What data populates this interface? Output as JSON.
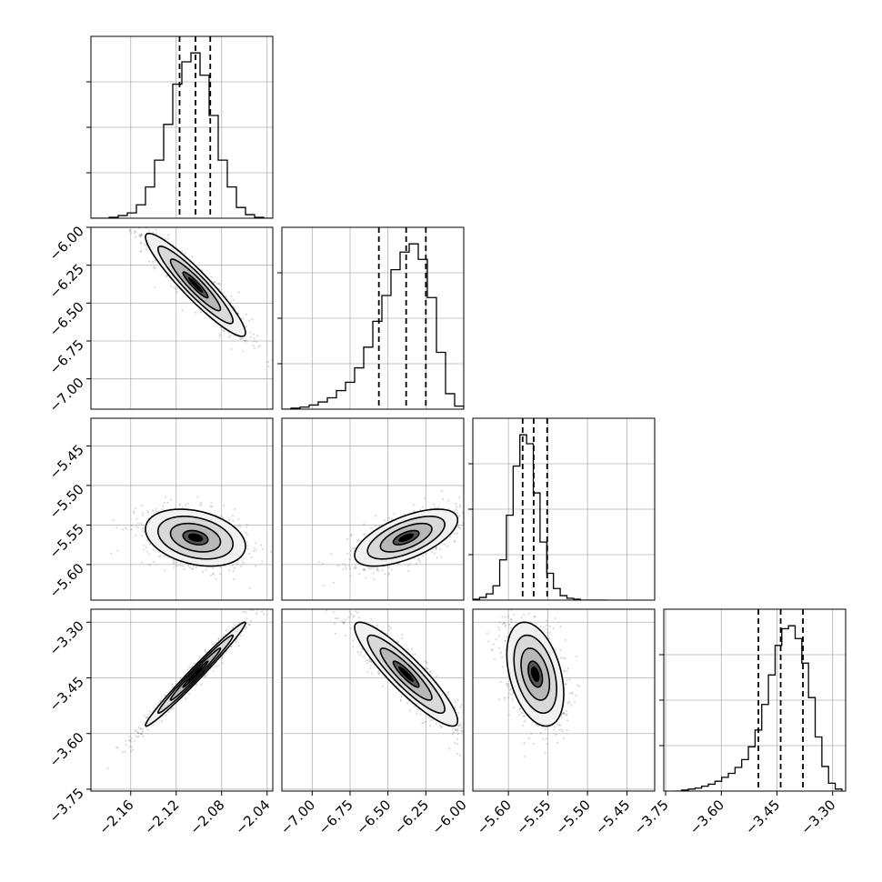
{
  "chart_data": {
    "type": "corner",
    "title": "",
    "grid": true,
    "parameters": [
      {
        "range": [
          -2.195,
          -2.035
        ],
        "ticks": [
          -2.16,
          -2.12,
          -2.08,
          -2.04
        ],
        "tick_labels": [
          "−2.16",
          "−2.12",
          "−2.08",
          "−2.04"
        ],
        "quantiles": [
          -2.117,
          -2.103,
          -2.09
        ],
        "histogram": {
          "bin_edges": [
            -2.195,
            -2.187,
            -2.179,
            -2.171,
            -2.163,
            -2.155,
            -2.147,
            -2.139,
            -2.131,
            -2.123,
            -2.115,
            -2.107,
            -2.099,
            -2.091,
            -2.083,
            -2.075,
            -2.067,
            -2.059,
            -2.051,
            -2.043,
            -2.035
          ],
          "counts": [
            0,
            0,
            1,
            3,
            6,
            15,
            35,
            65,
            105,
            150,
            175,
            185,
            160,
            115,
            65,
            35,
            12,
            4,
            1,
            0
          ]
        }
      },
      {
        "range": [
          -7.2,
          -6.0
        ],
        "ticks": [
          -7.0,
          -6.75,
          -6.5,
          -6.25,
          -6.0
        ],
        "tick_labels": [
          "−7.00",
          "−6.75",
          "−6.50",
          "−6.25",
          "−6.00"
        ],
        "quantiles": [
          -6.56,
          -6.38,
          -6.25
        ],
        "histogram": {
          "bin_edges": [
            -7.2,
            -7.14,
            -7.08,
            -7.02,
            -6.96,
            -6.9,
            -6.84,
            -6.78,
            -6.72,
            -6.66,
            -6.6,
            -6.54,
            -6.48,
            -6.42,
            -6.36,
            -6.3,
            -6.24,
            -6.18,
            -6.12,
            -6.06,
            -6.0
          ],
          "counts": [
            0,
            1,
            2,
            4,
            7,
            11,
            18,
            26,
            40,
            60,
            85,
            110,
            135,
            152,
            160,
            145,
            108,
            55,
            15,
            3
          ]
        }
      },
      {
        "range": [
          -5.645,
          -5.415
        ],
        "ticks": [
          -5.6,
          -5.55,
          -5.5,
          -5.45
        ],
        "tick_labels": [
          "−5.60",
          "−5.55",
          "−5.50",
          "−5.45"
        ],
        "quantiles": [
          -5.582,
          -5.568,
          -5.551
        ],
        "histogram": {
          "bin_edges": [
            -5.645,
            -5.6365,
            -5.628,
            -5.6195,
            -5.611,
            -5.6025,
            -5.594,
            -5.5855,
            -5.577,
            -5.5685,
            -5.56,
            -5.5515,
            -5.543,
            -5.5345,
            -5.526,
            -5.5175,
            -5.509,
            -5.5005,
            -5.492,
            -5.4835,
            -5.475
          ],
          "counts": [
            1,
            3,
            7,
            16,
            45,
            95,
            150,
            185,
            175,
            120,
            65,
            30,
            13,
            5,
            2,
            1,
            0,
            0,
            0,
            0
          ]
        }
      },
      {
        "range": [
          -3.755,
          -3.265
        ],
        "ticks": [
          -3.75,
          -3.6,
          -3.45,
          -3.3
        ],
        "tick_labels": [
          "−3.75",
          "−3.60",
          "−3.45",
          "−3.30"
        ],
        "quantiles": [
          -3.5,
          -3.44,
          -3.38
        ],
        "histogram": {
          "bin_edges": [
            -3.725,
            -3.707,
            -3.689,
            -3.671,
            -3.653,
            -3.635,
            -3.617,
            -3.599,
            -3.581,
            -3.563,
            -3.545,
            -3.527,
            -3.509,
            -3.491,
            -3.473,
            -3.455,
            -3.437,
            -3.419,
            -3.401,
            -3.383,
            -3.365,
            -3.347,
            -3.329,
            -3.311,
            -3.293,
            -3.275
          ],
          "counts": [
            0,
            1,
            2,
            3,
            5,
            7,
            10,
            14,
            18,
            24,
            32,
            45,
            62,
            88,
            118,
            148,
            165,
            168,
            155,
            130,
            95,
            55,
            25,
            8,
            2
          ]
        }
      }
    ],
    "pairs": [
      {
        "x_index": 0,
        "y_index": 1,
        "center": [
          -2.103,
          -6.38
        ],
        "sigma": [
          0.022,
          0.17
        ],
        "correlation": -0.93
      },
      {
        "x_index": 0,
        "y_index": 2,
        "center": [
          -2.103,
          -5.566
        ],
        "sigma": [
          0.022,
          0.018
        ],
        "correlation": -0.3
      },
      {
        "x_index": 1,
        "y_index": 2,
        "center": [
          -6.38,
          -5.566
        ],
        "sigma": [
          0.17,
          0.018
        ],
        "correlation": 0.62
      },
      {
        "x_index": 0,
        "y_index": 3,
        "center": [
          -2.103,
          -3.44
        ],
        "sigma": [
          0.022,
          0.07
        ],
        "correlation": 0.985
      },
      {
        "x_index": 1,
        "y_index": 3,
        "center": [
          -6.38,
          -3.44
        ],
        "sigma": [
          0.17,
          0.07
        ],
        "correlation": -0.9
      },
      {
        "x_index": 2,
        "y_index": 3,
        "center": [
          -5.566,
          -3.44
        ],
        "sigma": [
          0.018,
          0.07
        ],
        "correlation": -0.38
      }
    ],
    "contour_levels_sigma": [
      0.5,
      1.0,
      1.5,
      2.0
    ],
    "colors": {
      "line": "#000000",
      "grid": "#b0b0b0",
      "points": "#555555",
      "fill_light": "#f2f2f2",
      "fill_mid": "#b8b8b8",
      "fill_dark": "#555555",
      "fill_darkest": "#000000"
    }
  }
}
